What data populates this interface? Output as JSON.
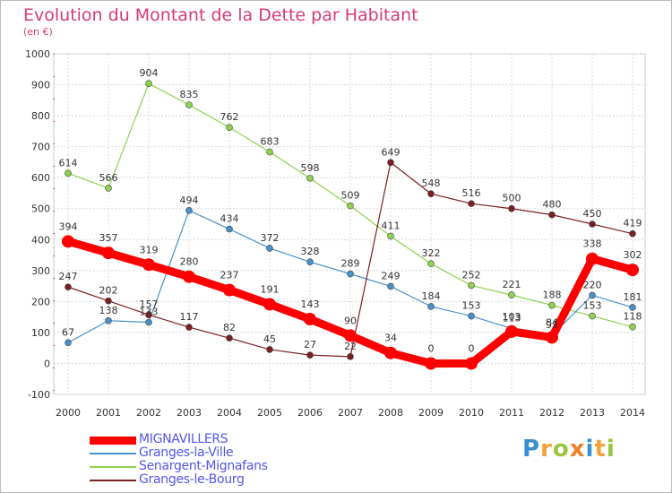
{
  "header": {
    "title": "Evolution du Montant de la Dette par Habitant",
    "subtitle": "(en €)"
  },
  "brand": {
    "letters": [
      "P",
      "r",
      "o",
      "x",
      "i",
      "t",
      "i"
    ],
    "colors": [
      "#3b8fd0",
      "#f2a33a",
      "#9bc43c",
      "#f07e26",
      "#3b8fd0",
      "#f2a33a",
      "#9bc43c"
    ]
  },
  "chart_data": {
    "type": "line",
    "title": "Evolution du Montant de la Dette par Habitant",
    "subtitle": "(en €)",
    "x": [
      "2000",
      "2001",
      "2002",
      "2003",
      "2004",
      "2005",
      "2006",
      "2007",
      "2008",
      "2009",
      "2010",
      "2011",
      "2012",
      "2013",
      "2014"
    ],
    "ylim": [
      -100,
      1000
    ],
    "yticks": [
      -100,
      0,
      100,
      200,
      300,
      400,
      500,
      600,
      700,
      800,
      900,
      1000
    ],
    "grid": true,
    "legend_position": "bottom-left",
    "series": [
      {
        "name": "MIGNAVILLERS",
        "color": "#ff0000",
        "width": 9,
        "values": [
          394,
          357,
          319,
          280,
          237,
          191,
          143,
          90,
          34,
          0,
          0,
          103,
          84,
          338,
          302
        ],
        "labels": [
          "394",
          "357",
          "319",
          "280",
          "237",
          "191",
          "143",
          "90",
          "34",
          "0",
          "0",
          "103",
          "84",
          "338",
          "302"
        ]
      },
      {
        "name": "Granges-la-Ville",
        "color": "#4a90c8",
        "width": 1.2,
        "values": [
          67,
          138,
          133,
          494,
          434,
          372,
          328,
          289,
          249,
          184,
          153,
          113,
          91,
          220,
          181
        ],
        "labels": [
          "67",
          "138",
          "133",
          "494",
          "434",
          "372",
          "328",
          "289",
          "249",
          "184",
          "153",
          "113",
          "91",
          "220",
          "181"
        ]
      },
      {
        "name": "Senargent-Mignafans",
        "color": "#8fd14f",
        "width": 1.2,
        "values": [
          614,
          566,
          904,
          835,
          762,
          683,
          598,
          509,
          411,
          322,
          252,
          221,
          188,
          153,
          118
        ],
        "labels": [
          "614",
          "566",
          "904",
          "835",
          "762",
          "683",
          "598",
          "509",
          "411",
          "322",
          "252",
          "221",
          "188",
          "153",
          "118"
        ]
      },
      {
        "name": "Granges-le-Bourg",
        "color": "#7a1f22",
        "width": 1.2,
        "values": [
          247,
          202,
          157,
          117,
          82,
          45,
          27,
          22,
          649,
          548,
          516,
          500,
          480,
          450,
          419
        ],
        "labels": [
          "247",
          "202",
          "157",
          "117",
          "82",
          "45",
          "27",
          "22",
          "649",
          "548",
          "516",
          "500",
          "480",
          "450",
          "419"
        ]
      }
    ]
  }
}
